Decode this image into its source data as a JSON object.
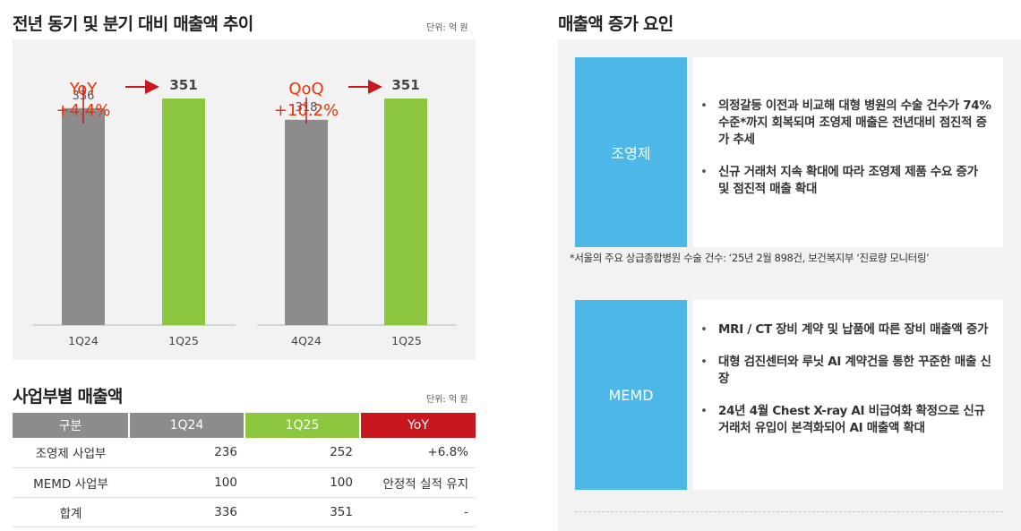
{
  "left": {
    "chart_title": "전년 동기 및 분기 대비 매출액 추이",
    "unit": "단위: 억 원",
    "table_title": "사업부별 매출액",
    "table_unit": "단위: 억 원"
  },
  "chart_data": {
    "type": "bar",
    "groups": [
      {
        "categories": [
          "1Q24",
          "1Q25"
        ],
        "values": [
          336,
          351
        ],
        "colors": [
          "#8c8c8c",
          "#8dc63f"
        ],
        "annotation_label": "YoY",
        "annotation_value": "+4.4%"
      },
      {
        "categories": [
          "4Q24",
          "1Q25"
        ],
        "values": [
          318,
          351
        ],
        "colors": [
          "#8c8c8c",
          "#8dc63f"
        ],
        "annotation_label": "QoQ",
        "annotation_value": "+10.2%"
      }
    ],
    "accent_color": "#e8320a",
    "arrow_color": "#c8171e"
  },
  "table": {
    "headers": [
      "구분",
      "1Q24",
      "1Q25",
      "YoY"
    ],
    "rows": [
      [
        "조영제 사업부",
        "236",
        "252",
        "+6.8%"
      ],
      [
        "MEMD 사업부",
        "100",
        "100",
        "안정적 실적 유지"
      ],
      [
        "합계",
        "336",
        "351",
        "-"
      ]
    ]
  },
  "right": {
    "title": "매출액 증가 요인",
    "sections": [
      {
        "label": "조영제",
        "bullets": [
          "의정갈등 이전과 비교해 대형 병원의 수술 건수가 74% 수준*까지 회복되며 조영제 매출은 전년대비 점진적 증가 추세",
          "신규 거래처 지속 확대에 따라 조영제 제품 수요 증가 및 점진적 매출 확대"
        ]
      },
      {
        "label": "MEMD",
        "bullets": [
          "MRI / CT 장비 계약 및 납품에 따른 장비 매출액 증가",
          "대형 검진센터와 루닛 AI 계약건을 통한 꾸준한 매출 신장",
          "24년 4월 Chest X-ray AI 비급여화 확정으로 신규 거래처 유입이 본격화되어 AI 매출액 확대"
        ]
      }
    ],
    "footnote": "*서울의 주요 상급종합병원 수술 건수: ‘25년 2월 898건, 보건복지부 ‘진료량 모니터링’"
  }
}
